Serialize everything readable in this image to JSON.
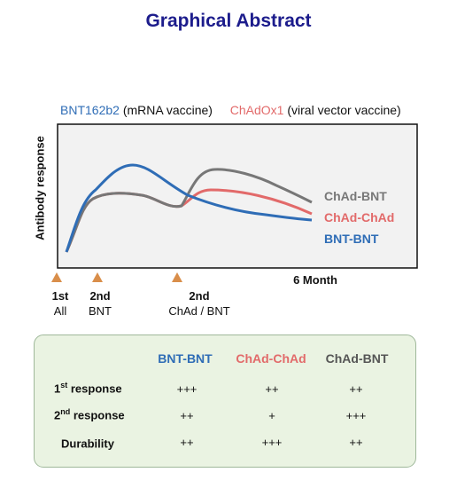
{
  "title": "Graphical Abstract",
  "legend": {
    "bnt_name": "BNT162b2",
    "bnt_desc": "(mRNA vaccine)",
    "chad_name": "ChAdOx1",
    "chad_desc": "(viral vector vaccine)"
  },
  "colors": {
    "title": "#1c1c8c",
    "bnt": "#2f6db6",
    "chad": "#e26a6a",
    "mix": "#777777",
    "marker": "#d98e4a",
    "plot_bg": "#f2f2f2",
    "panel_bg": "#eaf3e2"
  },
  "chart": {
    "ylabel": "Antibody response",
    "series": [
      {
        "name": "ChAd-BNT",
        "color": "#777777"
      },
      {
        "name": "ChAd-ChAd",
        "color": "#e26a6a"
      },
      {
        "name": "BNT-BNT",
        "color": "#2f6db6"
      }
    ],
    "month_label": "6 Month",
    "doses": [
      {
        "num": "1st",
        "who": "All"
      },
      {
        "num": "2nd",
        "who": "BNT"
      },
      {
        "num": "2nd",
        "who": "ChAd / BNT"
      }
    ]
  },
  "table": {
    "columns": [
      "BNT-BNT",
      "ChAd-ChAd",
      "ChAd-BNT"
    ],
    "rows": [
      {
        "label_pre": "1",
        "label_sup": "st",
        "label_post": " response",
        "values": [
          "+++",
          "++",
          "++"
        ]
      },
      {
        "label_pre": "2",
        "label_sup": "nd",
        "label_post": " response",
        "values": [
          "++",
          "+",
          "+++"
        ]
      },
      {
        "label_pre": "Durability",
        "label_sup": "",
        "label_post": "",
        "values": [
          "++",
          "+++",
          "++"
        ]
      }
    ]
  }
}
